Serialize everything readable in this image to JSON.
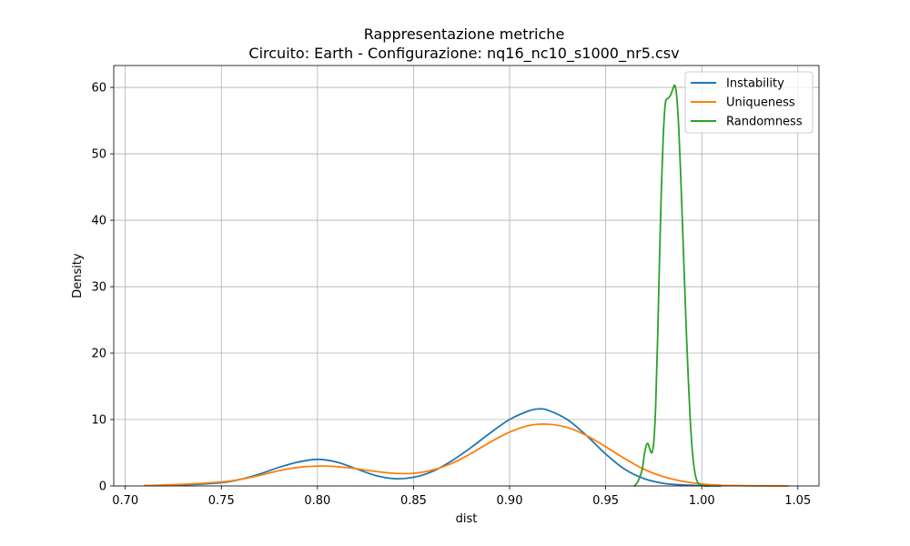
{
  "chart_data": {
    "type": "line",
    "title_line1": "Rappresentazione metriche",
    "title_line2": "Circuito: Earth - Configurazione: nq16_nc10_s1000_nr5.csv",
    "xlabel": "dist",
    "ylabel": "Density",
    "xlim": [
      0.694,
      1.061
    ],
    "ylim": [
      0,
      63.3
    ],
    "xticks": [
      0.7,
      0.75,
      0.8,
      0.85,
      0.9,
      0.95,
      1.0,
      1.05
    ],
    "xtick_labels": [
      "0.70",
      "0.75",
      "0.80",
      "0.85",
      "0.90",
      "0.95",
      "1.00",
      "1.05"
    ],
    "yticks": [
      0,
      10,
      20,
      30,
      40,
      50,
      60
    ],
    "ytick_labels": [
      "0",
      "10",
      "20",
      "30",
      "40",
      "50",
      "60"
    ],
    "grid": true,
    "legend_position": "top-right",
    "series": [
      {
        "name": "Instability",
        "color": "#1f77b4",
        "x": [
          0.71,
          0.73,
          0.75,
          0.76,
          0.77,
          0.78,
          0.79,
          0.8,
          0.81,
          0.82,
          0.83,
          0.84,
          0.85,
          0.86,
          0.87,
          0.88,
          0.89,
          0.9,
          0.91,
          0.915,
          0.92,
          0.93,
          0.94,
          0.95,
          0.96,
          0.97,
          0.98,
          0.99,
          1.0,
          1.01
        ],
        "y": [
          0.05,
          0.15,
          0.5,
          1.0,
          1.8,
          2.8,
          3.6,
          4.0,
          3.6,
          2.6,
          1.6,
          1.1,
          1.3,
          2.2,
          3.8,
          5.8,
          8.0,
          10.0,
          11.3,
          11.6,
          11.4,
          10.0,
          7.6,
          4.8,
          2.5,
          1.1,
          0.4,
          0.15,
          0.05,
          0.0
        ]
      },
      {
        "name": "Uniqueness",
        "color": "#ff7f0e",
        "x": [
          0.71,
          0.73,
          0.75,
          0.76,
          0.77,
          0.78,
          0.79,
          0.8,
          0.81,
          0.82,
          0.83,
          0.84,
          0.85,
          0.86,
          0.87,
          0.88,
          0.89,
          0.9,
          0.91,
          0.92,
          0.93,
          0.94,
          0.95,
          0.96,
          0.97,
          0.98,
          0.99,
          1.0,
          1.01,
          1.02,
          1.03,
          1.045
        ],
        "y": [
          0.05,
          0.25,
          0.6,
          1.0,
          1.6,
          2.3,
          2.8,
          3.0,
          2.9,
          2.6,
          2.2,
          1.9,
          1.9,
          2.4,
          3.4,
          4.9,
          6.6,
          8.1,
          9.1,
          9.3,
          8.8,
          7.6,
          5.9,
          4.1,
          2.5,
          1.4,
          0.7,
          0.3,
          0.1,
          0.05,
          0.02,
          0.0
        ]
      },
      {
        "name": "Randomness",
        "color": "#2ca02c",
        "x": [
          0.965,
          0.967,
          0.969,
          0.97,
          0.971,
          0.972,
          0.973,
          0.974,
          0.975,
          0.976,
          0.977,
          0.978,
          0.979,
          0.98,
          0.981,
          0.982,
          0.983,
          0.984,
          0.985,
          0.986,
          0.987,
          0.988,
          0.989,
          0.99,
          0.991,
          0.992,
          0.993,
          0.994,
          0.995,
          0.996,
          0.997,
          0.998,
          0.999,
          1.0,
          1.001,
          1.002,
          1.004
        ],
        "y": [
          0.0,
          0.8,
          2.5,
          4.5,
          6.0,
          6.4,
          5.5,
          5.0,
          6.5,
          12.0,
          22.0,
          34.0,
          45.0,
          53.0,
          57.5,
          58.3,
          58.5,
          59.0,
          59.8,
          60.3,
          58.5,
          54.0,
          47.0,
          39.0,
          31.0,
          23.0,
          16.0,
          10.0,
          5.5,
          2.8,
          1.2,
          0.5,
          0.2,
          0.08,
          0.03,
          0.0,
          0.0
        ]
      }
    ]
  }
}
